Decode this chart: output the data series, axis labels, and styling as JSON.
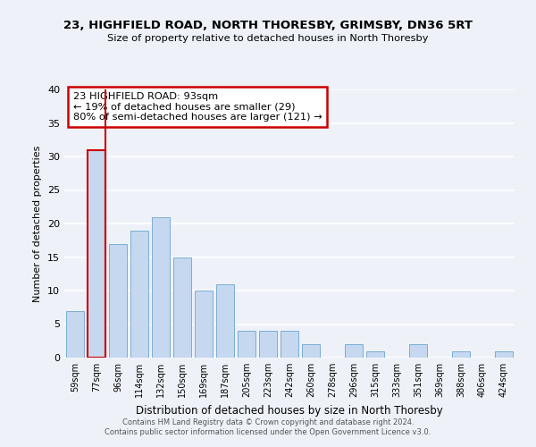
{
  "title1": "23, HIGHFIELD ROAD, NORTH THORESBY, GRIMSBY, DN36 5RT",
  "title2": "Size of property relative to detached houses in North Thoresby",
  "xlabel": "Distribution of detached houses by size in North Thoresby",
  "ylabel": "Number of detached properties",
  "bar_labels": [
    "59sqm",
    "77sqm",
    "96sqm",
    "114sqm",
    "132sqm",
    "150sqm",
    "169sqm",
    "187sqm",
    "205sqm",
    "223sqm",
    "242sqm",
    "260sqm",
    "278sqm",
    "296sqm",
    "315sqm",
    "333sqm",
    "351sqm",
    "369sqm",
    "388sqm",
    "406sqm",
    "424sqm"
  ],
  "bar_values": [
    7,
    31,
    17,
    19,
    21,
    15,
    10,
    11,
    4,
    4,
    4,
    2,
    0,
    2,
    1,
    0,
    2,
    0,
    1,
    0,
    1
  ],
  "bar_color": "#c5d8f0",
  "bar_edge_color": "#7aadd4",
  "highlight_bar_index": 1,
  "highlight_color": "#cc0000",
  "ylim": [
    0,
    40
  ],
  "yticks": [
    0,
    5,
    10,
    15,
    20,
    25,
    30,
    35,
    40
  ],
  "annotation_title": "23 HIGHFIELD ROAD: 93sqm",
  "annotation_line1": "← 19% of detached houses are smaller (29)",
  "annotation_line2": "80% of semi-detached houses are larger (121) →",
  "annotation_box_color": "#ffffff",
  "annotation_box_edge": "#cc0000",
  "footer1": "Contains HM Land Registry data © Crown copyright and database right 2024.",
  "footer2": "Contains public sector information licensed under the Open Government Licence v3.0.",
  "bg_color": "#eef2f8",
  "grid_color": "#ffffff"
}
